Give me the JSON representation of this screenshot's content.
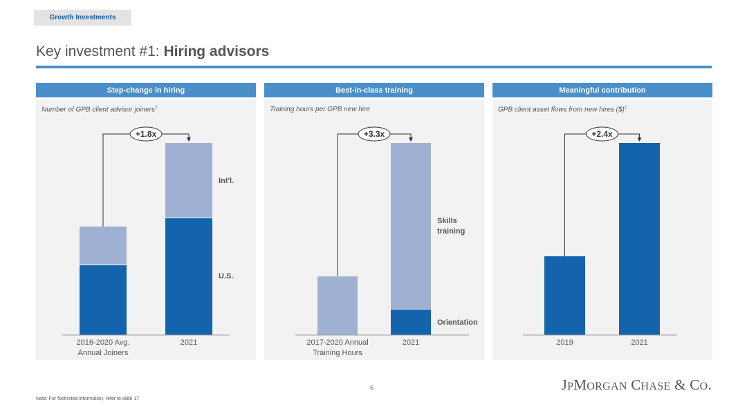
{
  "section_tag": "Growth Investments",
  "title": {
    "prefix": "Key investment #1: ",
    "emphasis": "Hiring advisors"
  },
  "page_number": "6",
  "footnote": "Note: For footnoted information, refer to slide 17",
  "logo": {
    "text": "JPMorgan Chase & Co."
  },
  "colors": {
    "dark_blue": "#1463ad",
    "light_blue": "#9eb1d2",
    "header_blue": "#4a8fc9",
    "panel_bg": "#f2f2f2"
  },
  "chart_data": [
    {
      "type": "bar",
      "stacked": true,
      "header": "Step-change in hiring",
      "subtitle": "Number of GPB client advisor joiners",
      "footnote_mark": "1",
      "categories": [
        "2016-2020 Avg.\nAnnual Joiners",
        "2021"
      ],
      "series": [
        {
          "name": "U.S.",
          "values": [
            0.365,
            0.61
          ]
        },
        {
          "name": "Int'l.",
          "values": [
            0.2,
            0.39
          ]
        }
      ],
      "ylim": [
        0,
        1
      ],
      "annotation": "+1.8x"
    },
    {
      "type": "bar",
      "stacked": true,
      "header": "Best-in-class training",
      "subtitle": "Training hours per GPB new hire",
      "footnote_mark": "",
      "categories": [
        "2017-2020 Annual\nTraining Hours",
        "2021"
      ],
      "series": [
        {
          "name": "Orientation",
          "values": [
            0,
            0.135
          ]
        },
        {
          "name": "Skills\ntraining",
          "values": [
            0.305,
            0.865
          ]
        }
      ],
      "ylim": [
        0,
        1
      ],
      "annotation": "+3.3x"
    },
    {
      "type": "bar",
      "stacked": false,
      "header": "Meaningful contribution",
      "subtitle": "GPB client asset flows from new hires ($)",
      "footnote_mark": "1",
      "categories": [
        "2019",
        "2021"
      ],
      "series": [
        {
          "name": "",
          "values": [
            0.41,
            1.0
          ]
        }
      ],
      "ylim": [
        0,
        1
      ],
      "annotation": "+2.4x"
    }
  ]
}
